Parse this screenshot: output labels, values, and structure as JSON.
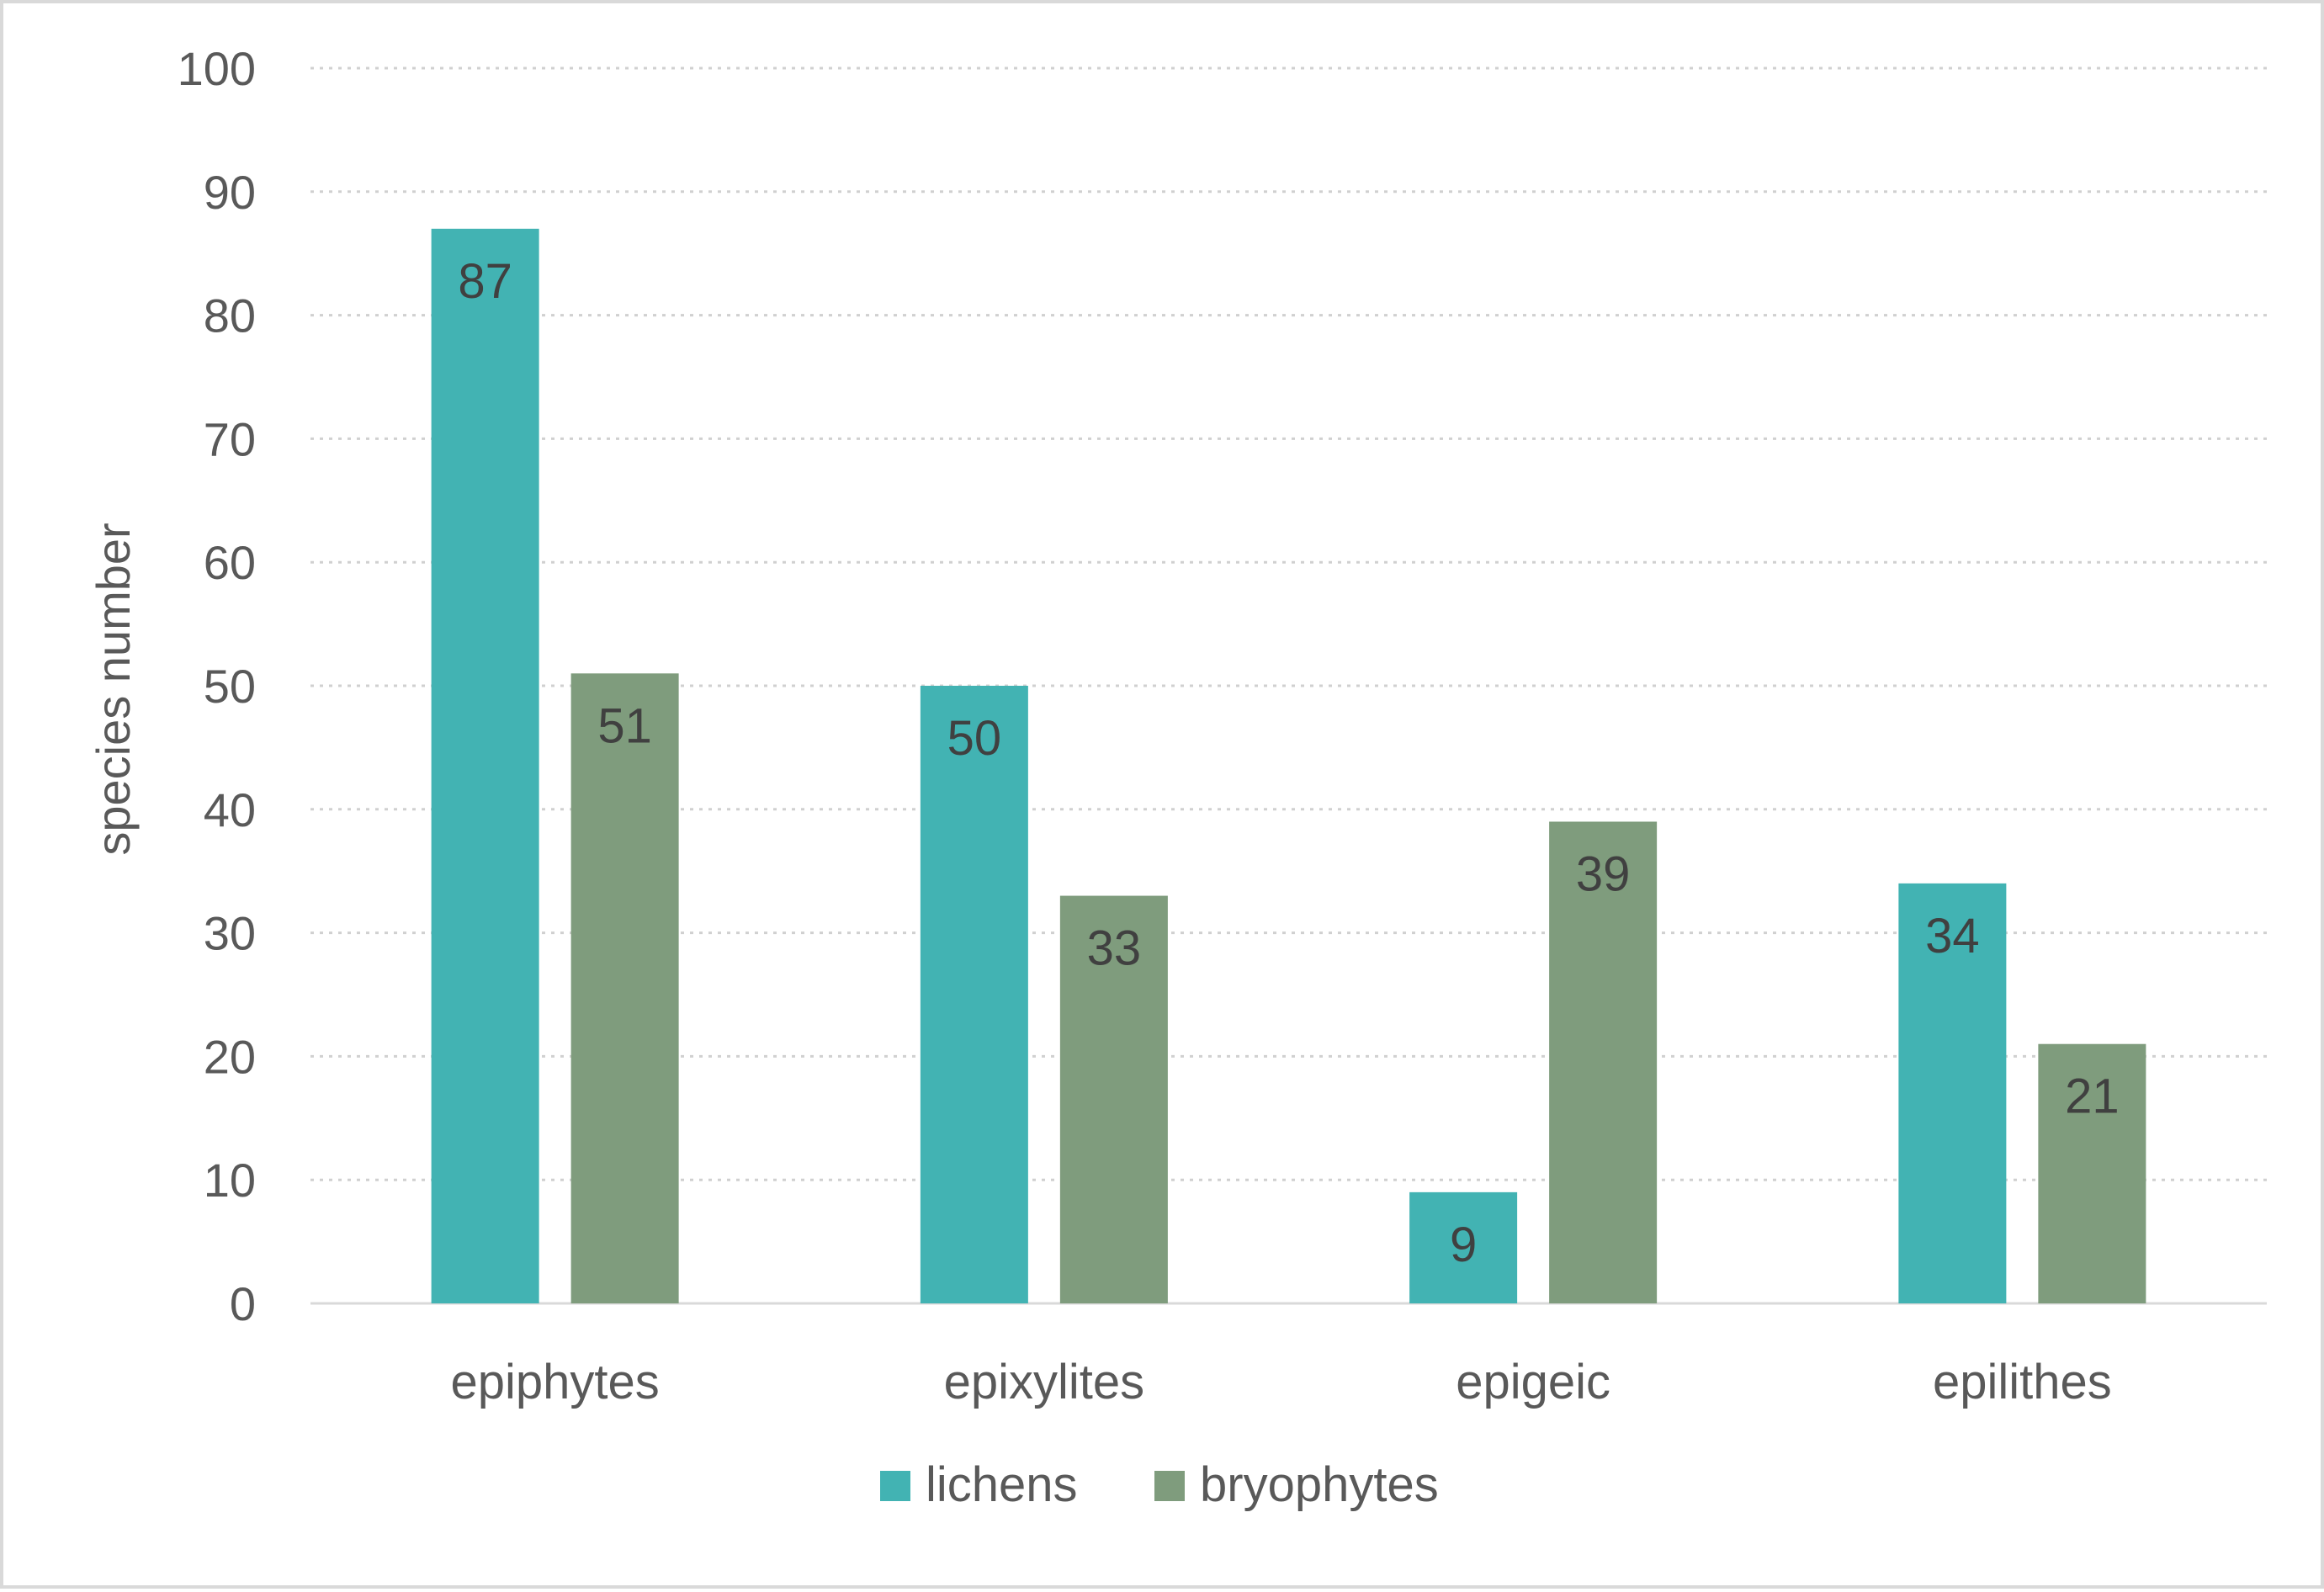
{
  "chart_data": {
    "type": "bar",
    "title": "",
    "xlabel": "",
    "ylabel": "species number",
    "ylim": [
      0,
      100
    ],
    "yticks": [
      0,
      10,
      20,
      30,
      40,
      50,
      60,
      70,
      80,
      90,
      100
    ],
    "grid": true,
    "legend_position": "bottom",
    "categories": [
      "epiphytes",
      "epixylites",
      "epigeic",
      "epilithes"
    ],
    "series": [
      {
        "name": "lichens",
        "color": "#42b3b3",
        "values": [
          87,
          50,
          9,
          34
        ]
      },
      {
        "name": "bryophytes",
        "color": "#7f9c7d",
        "values": [
          51,
          33,
          39,
          21
        ]
      }
    ]
  }
}
